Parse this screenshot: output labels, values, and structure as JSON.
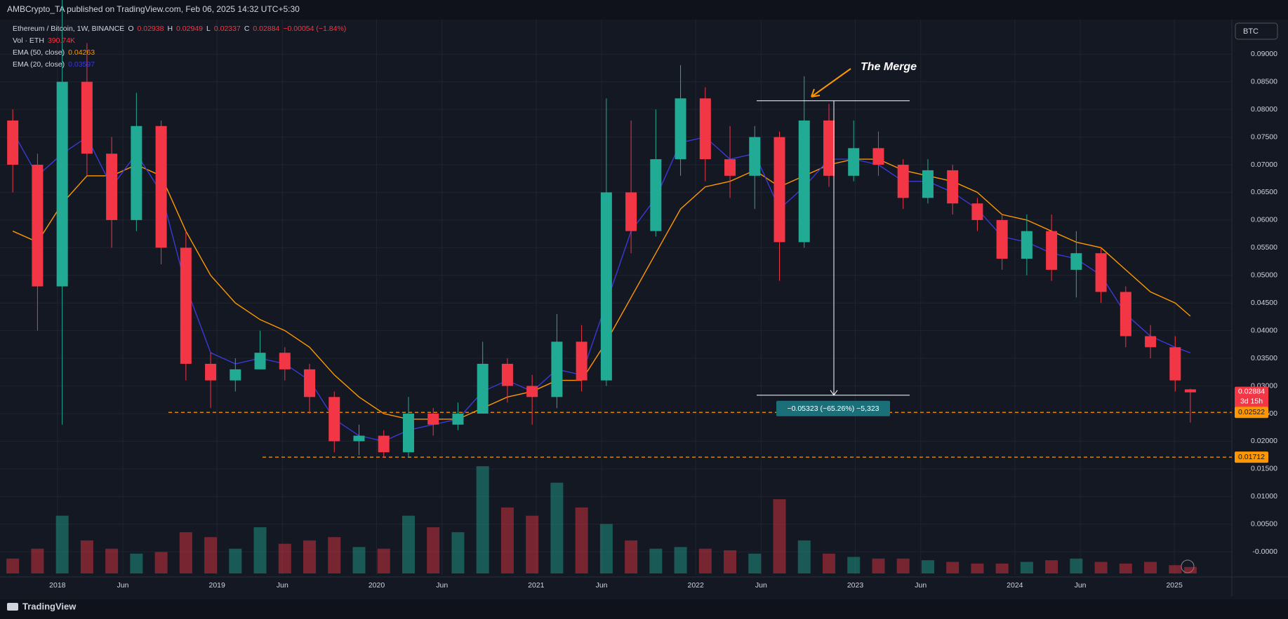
{
  "header": {
    "published": "AMBCrypto_TA published on TradingView.com, Feb 06, 2025 14:32 UTC+5:30",
    "footer": "TradingView",
    "currency_button": "BTC"
  },
  "chart_data": {
    "type": "candlestick",
    "symbol": "Ethereum / Bitcoin, 1W, BINANCE",
    "ohlc_labels": [
      "O",
      "H",
      "L",
      "C"
    ],
    "change": "−0.00054 (−1.84%)",
    "up_color": "#22ab94",
    "down_color": "#f23645",
    "x": [
      2017.72,
      2017.875,
      2018.03,
      2018.185,
      2018.34,
      2018.495,
      2018.65,
      2018.805,
      2018.96,
      2019.115,
      2019.27,
      2019.425,
      2019.58,
      2019.735,
      2019.89,
      2020.045,
      2020.2,
      2020.355,
      2020.51,
      2020.665,
      2020.82,
      2020.975,
      2021.13,
      2021.285,
      2021.44,
      2021.595,
      2021.75,
      2021.905,
      2022.06,
      2022.215,
      2022.37,
      2022.525,
      2022.68,
      2022.835,
      2022.99,
      2023.145,
      2023.3,
      2023.455,
      2023.61,
      2023.765,
      2023.92,
      2024.075,
      2024.23,
      2024.385,
      2024.54,
      2024.695,
      2024.85,
      2025.005,
      2025.1
    ],
    "open": [
      0.078,
      0.07,
      0.048,
      0.085,
      0.072,
      0.06,
      0.077,
      0.055,
      0.034,
      0.031,
      0.033,
      0.036,
      0.033,
      0.028,
      0.02,
      0.021,
      0.018,
      0.025,
      0.023,
      0.025,
      0.034,
      0.03,
      0.028,
      0.038,
      0.031,
      0.065,
      0.058,
      0.071,
      0.082,
      0.071,
      0.068,
      0.075,
      0.056,
      0.078,
      0.068,
      0.073,
      0.07,
      0.064,
      0.069,
      0.063,
      0.06,
      0.053,
      0.058,
      0.051,
      0.054,
      0.047,
      0.039,
      0.037,
      0.02938
    ],
    "high": [
      0.08,
      0.072,
      0.1,
      0.092,
      0.075,
      0.083,
      0.078,
      0.058,
      0.036,
      0.035,
      0.04,
      0.037,
      0.034,
      0.029,
      0.023,
      0.022,
      0.028,
      0.026,
      0.027,
      0.038,
      0.035,
      0.032,
      0.043,
      0.041,
      0.082,
      0.078,
      0.08,
      0.088,
      0.084,
      0.077,
      0.077,
      0.076,
      0.086,
      0.081,
      0.078,
      0.076,
      0.071,
      0.071,
      0.07,
      0.064,
      0.061,
      0.061,
      0.061,
      0.058,
      0.055,
      0.048,
      0.041,
      0.039,
      0.02949
    ],
    "low": [
      0.065,
      0.04,
      0.023,
      0.068,
      0.055,
      0.058,
      0.052,
      0.031,
      0.026,
      0.029,
      0.033,
      0.031,
      0.025,
      0.018,
      0.0175,
      0.017,
      0.017,
      0.021,
      0.022,
      0.025,
      0.027,
      0.023,
      0.026,
      0.029,
      0.03,
      0.054,
      0.057,
      0.068,
      0.067,
      0.064,
      0.062,
      0.049,
      0.055,
      0.066,
      0.067,
      0.068,
      0.062,
      0.063,
      0.061,
      0.058,
      0.051,
      0.05,
      0.049,
      0.046,
      0.045,
      0.037,
      0.035,
      0.029,
      0.02337
    ],
    "close": [
      0.07,
      0.048,
      0.085,
      0.072,
      0.06,
      0.077,
      0.055,
      0.034,
      0.031,
      0.033,
      0.036,
      0.033,
      0.028,
      0.02,
      0.021,
      0.018,
      0.025,
      0.023,
      0.025,
      0.034,
      0.03,
      0.028,
      0.038,
      0.031,
      0.065,
      0.058,
      0.071,
      0.082,
      0.071,
      0.068,
      0.075,
      0.056,
      0.078,
      0.068,
      0.073,
      0.07,
      0.064,
      0.069,
      0.063,
      0.06,
      0.053,
      0.058,
      0.051,
      0.054,
      0.047,
      0.039,
      0.037,
      0.031,
      0.02884
    ],
    "series": [
      {
        "name": "EMA (50, close)",
        "color": "#ff9800",
        "values": [
          0.058,
          0.056,
          0.063,
          0.068,
          0.068,
          0.07,
          0.068,
          0.058,
          0.05,
          0.045,
          0.042,
          0.04,
          0.037,
          0.032,
          0.028,
          0.025,
          0.024,
          0.024,
          0.024,
          0.026,
          0.028,
          0.029,
          0.031,
          0.031,
          0.038,
          0.046,
          0.054,
          0.062,
          0.066,
          0.067,
          0.069,
          0.066,
          0.068,
          0.07,
          0.071,
          0.071,
          0.069,
          0.068,
          0.067,
          0.065,
          0.061,
          0.06,
          0.058,
          0.056,
          0.055,
          0.051,
          0.047,
          0.045,
          0.04263
        ]
      },
      {
        "name": "EMA (20, close)",
        "color": "#3a3ad6",
        "values": [
          0.076,
          0.068,
          0.072,
          0.075,
          0.066,
          0.072,
          0.065,
          0.048,
          0.036,
          0.034,
          0.035,
          0.034,
          0.031,
          0.024,
          0.021,
          0.02,
          0.022,
          0.023,
          0.024,
          0.029,
          0.031,
          0.029,
          0.033,
          0.032,
          0.045,
          0.058,
          0.064,
          0.074,
          0.075,
          0.071,
          0.072,
          0.062,
          0.066,
          0.071,
          0.071,
          0.07,
          0.067,
          0.067,
          0.065,
          0.062,
          0.057,
          0.056,
          0.054,
          0.053,
          0.05,
          0.043,
          0.039,
          0.037,
          0.03597
        ]
      }
    ],
    "volume": {
      "name": "Vol · ETH",
      "last_label": "390.74K",
      "lim": [
        0,
        8500
      ],
      "values": [
        900,
        1500,
        3500,
        2000,
        1500,
        1200,
        1300,
        2500,
        2200,
        1500,
        2800,
        1800,
        2000,
        2200,
        1600,
        1500,
        3500,
        2800,
        2500,
        6500,
        4000,
        3500,
        5500,
        4000,
        3000,
        2000,
        1500,
        1600,
        1500,
        1400,
        1200,
        4500,
        2000,
        1200,
        1000,
        900,
        900,
        800,
        700,
        600,
        600,
        700,
        800,
        900,
        700,
        600,
        700,
        500,
        390.74
      ]
    },
    "xlim": [
      2017.64,
      2025.36
    ],
    "xticks": [
      {
        "value": 2018,
        "label": "2018"
      },
      {
        "value": 2018.41,
        "label": "Jun"
      },
      {
        "value": 2019,
        "label": "2019"
      },
      {
        "value": 2019.41,
        "label": "Jun"
      },
      {
        "value": 2020,
        "label": "2020"
      },
      {
        "value": 2020.41,
        "label": "Jun"
      },
      {
        "value": 2021,
        "label": "2021"
      },
      {
        "value": 2021.41,
        "label": "Jun"
      },
      {
        "value": 2022,
        "label": "2022"
      },
      {
        "value": 2022.41,
        "label": "Jun"
      },
      {
        "value": 2023,
        "label": "2023"
      },
      {
        "value": 2023.41,
        "label": "Jun"
      },
      {
        "value": 2024,
        "label": "2024"
      },
      {
        "value": 2024.41,
        "label": "Jun"
      },
      {
        "value": 2025,
        "label": "2025"
      }
    ],
    "ylim": [
      -0.00416,
      0.09624
    ],
    "yticks": [
      {
        "value": 0.09,
        "label": "0.09000"
      },
      {
        "value": 0.085,
        "label": "0.08500"
      },
      {
        "value": 0.08,
        "label": "0.08000"
      },
      {
        "value": 0.075,
        "label": "0.07500"
      },
      {
        "value": 0.07,
        "label": "0.07000"
      },
      {
        "value": 0.065,
        "label": "0.06500"
      },
      {
        "value": 0.06,
        "label": "0.06000"
      },
      {
        "value": 0.055,
        "label": "0.05500"
      },
      {
        "value": 0.05,
        "label": "0.05000"
      },
      {
        "value": 0.045,
        "label": "0.04500"
      },
      {
        "value": 0.04,
        "label": "0.04000"
      },
      {
        "value": 0.035,
        "label": "0.03500"
      },
      {
        "value": 0.03,
        "label": "0.03000"
      },
      {
        "value": 0.025,
        "label": "0.02500"
      },
      {
        "value": 0.02,
        "label": "0.02000"
      },
      {
        "value": 0.015,
        "label": "0.01500"
      },
      {
        "value": 0.01,
        "label": "0.01000"
      },
      {
        "value": 0.005,
        "label": "0.00500"
      },
      {
        "value": 0,
        "label": "-0.0000"
      }
    ],
    "grid": true,
    "levels": [
      0.02522,
      0.01712
    ],
    "level_color": "#ff9800",
    "countdown": "3d 15h",
    "measure": {
      "from": 0.08156,
      "to": 0.02833,
      "label": "−0.05323 (−65.26%) −5,323"
    },
    "annotation": "The Merge"
  }
}
